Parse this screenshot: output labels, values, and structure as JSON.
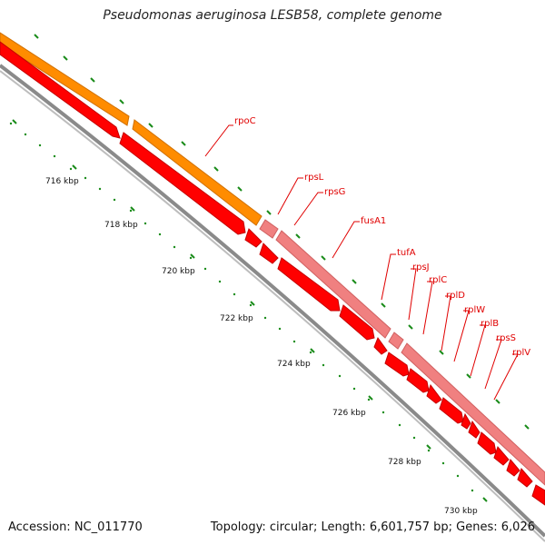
{
  "title": "Pseudomonas aeruginosa LESB58, complete genome",
  "footer": {
    "accession": "Accession: NC_011770",
    "summary": "Topology: circular; Length: 6,601,757 bp; Genes: 6,026"
  },
  "colors": {
    "cds": "#ff0000",
    "cds_stroke": "#c40000",
    "operon_orange": "#ff8c00",
    "operon_pink": "#f08080",
    "backbone": "#8a8a8a",
    "tick": "#1a8c1a",
    "label": "#e00000"
  },
  "kbp_labels": [
    "716 kbp",
    "718 kbp",
    "720 kbp",
    "722 kbp",
    "724 kbp",
    "726 kbp",
    "728 kbp",
    "730 kbp"
  ],
  "genes": [
    "rpoC",
    "rpsL",
    "rpsG",
    "fusA1",
    "tufA",
    "rpsJ",
    "rplC",
    "rplD",
    "rplW",
    "rplB",
    "rpsS",
    "rplV"
  ]
}
